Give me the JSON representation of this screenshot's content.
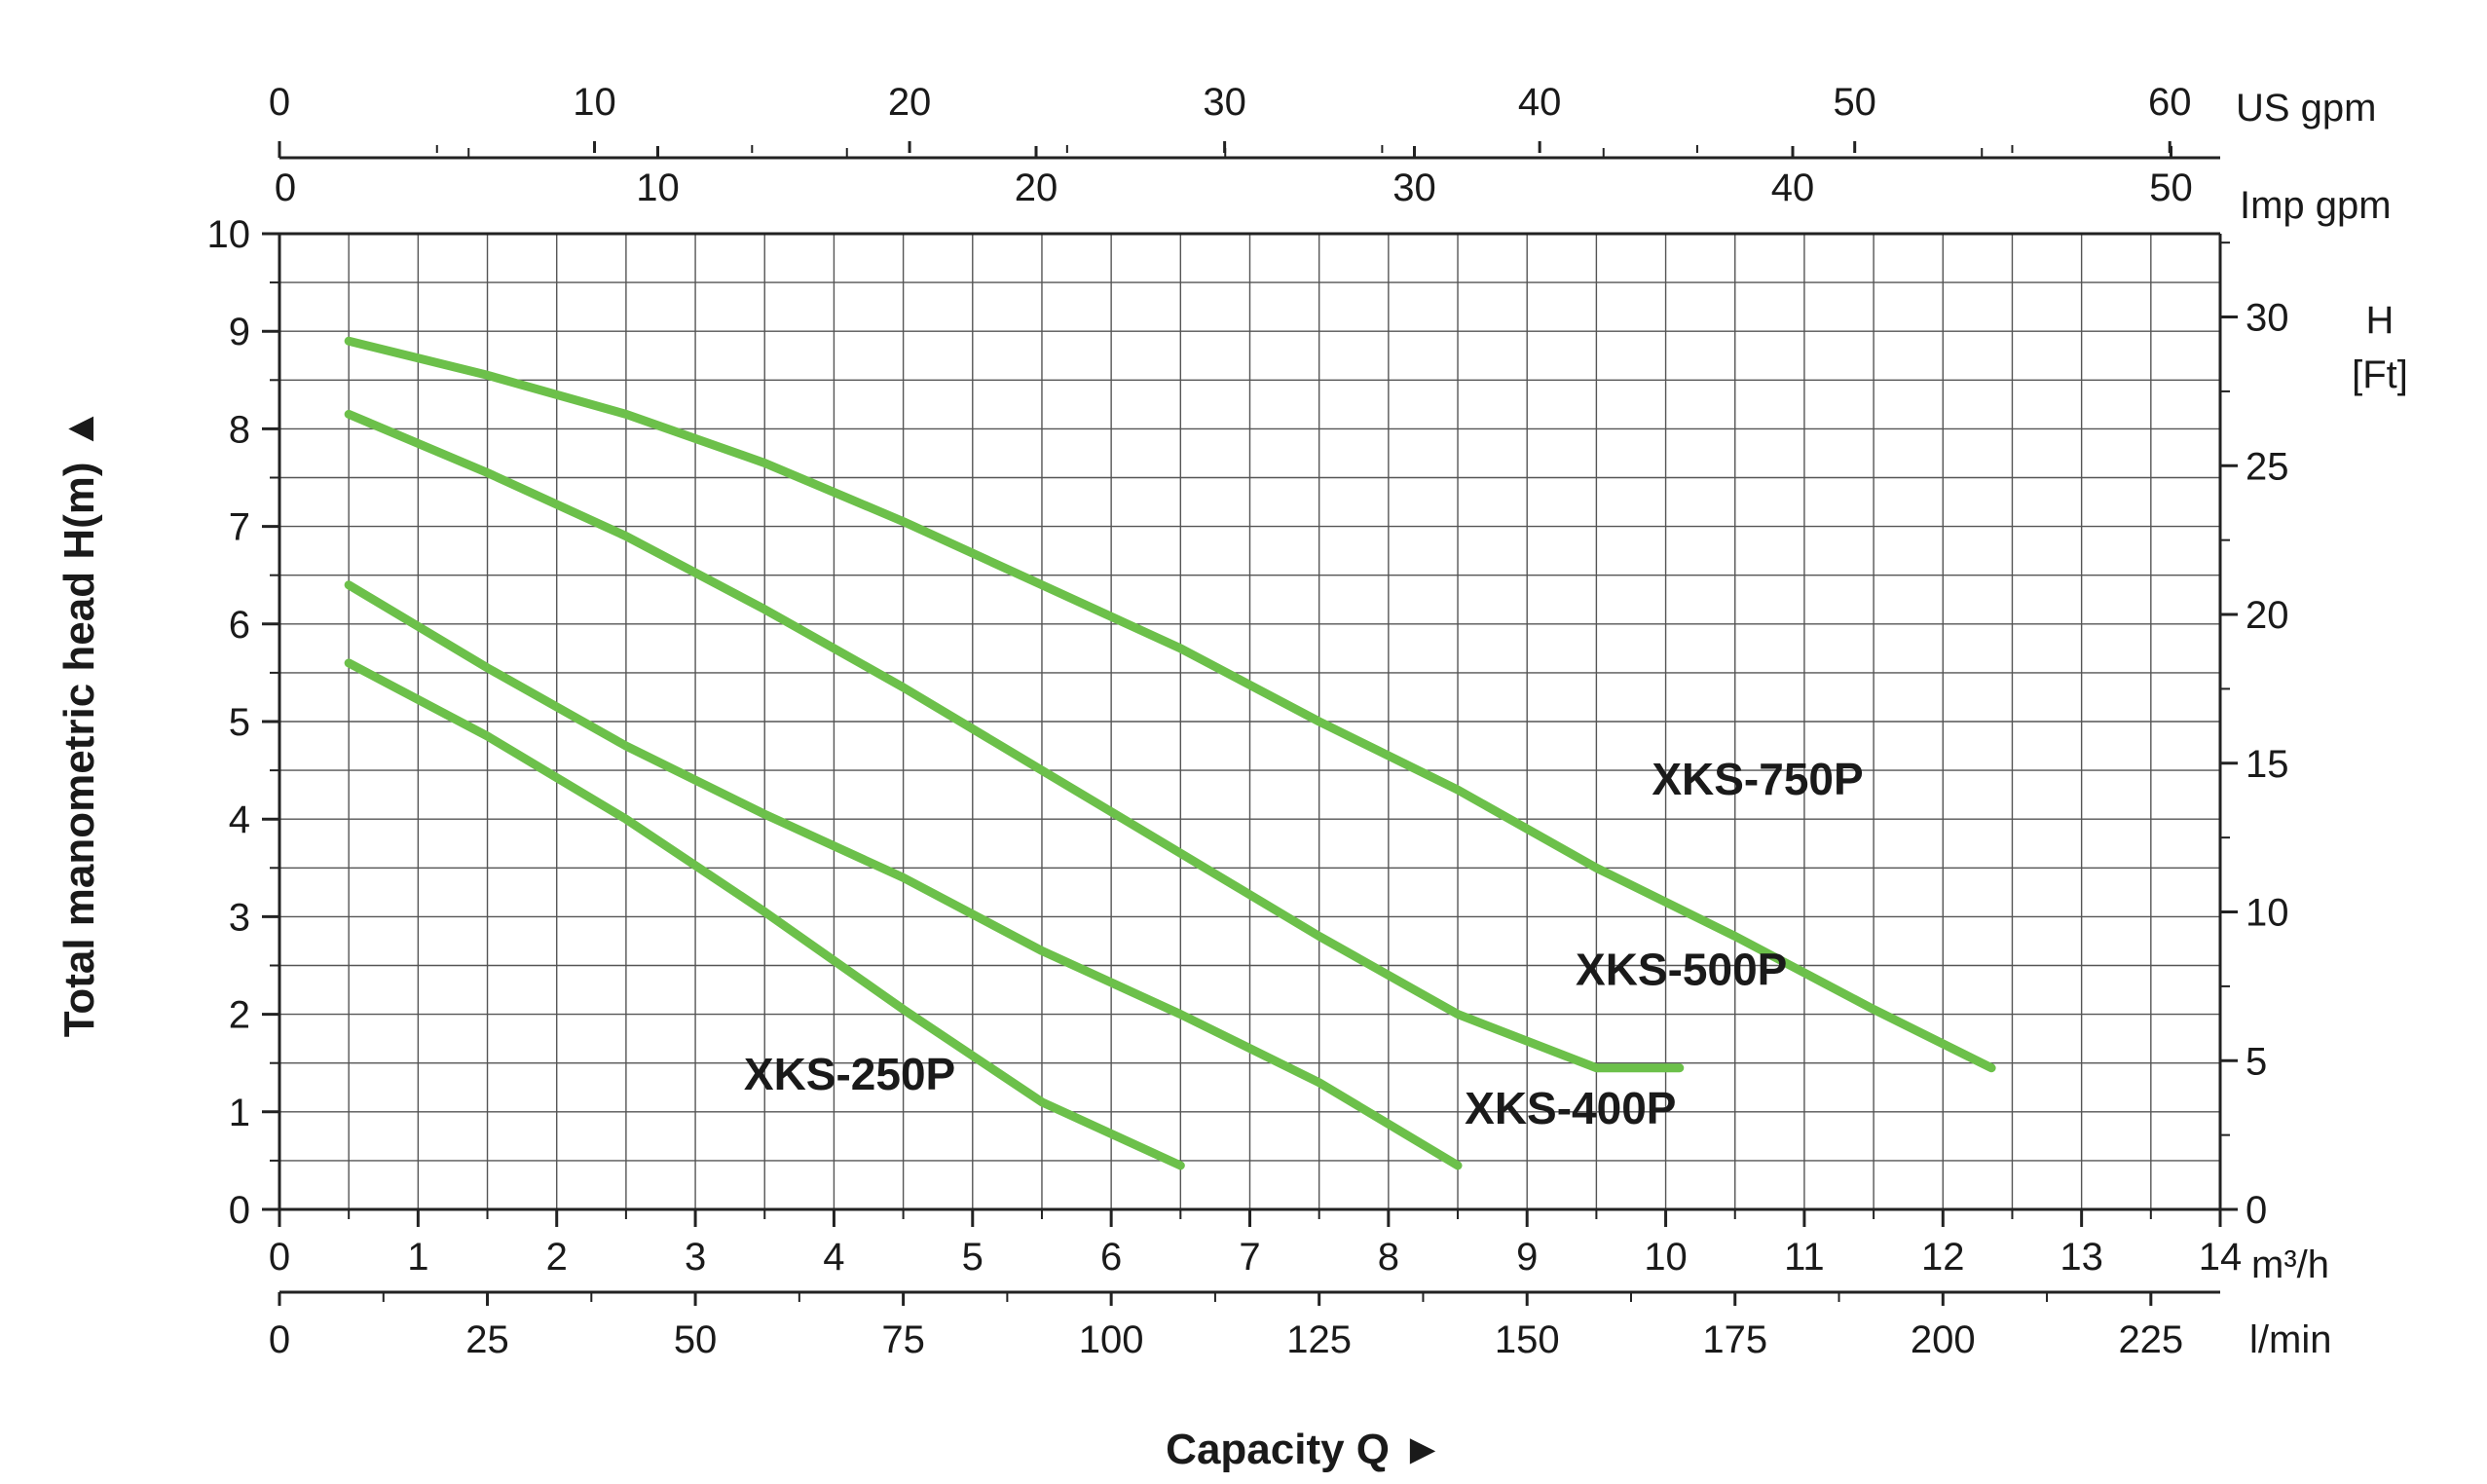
{
  "chart_data": {
    "type": "line",
    "xlabel": "Capacity Q",
    "ylabel": "Total manometric head H(m)",
    "x_arrow": "►",
    "y_arrow": "▲",
    "xlim": [
      0,
      14
    ],
    "ylim": [
      0,
      10
    ],
    "x_ticks": [
      "0",
      "1",
      "2",
      "3",
      "4",
      "5",
      "6",
      "7",
      "8",
      "9",
      "10",
      "11",
      "12",
      "13",
      "14"
    ],
    "y_ticks": [
      "0",
      "1",
      "2",
      "3",
      "4",
      "5",
      "6",
      "7",
      "8",
      "9",
      "10"
    ],
    "x_unit": "m³/h",
    "grid": true,
    "series_color": "#6cc04a",
    "series": [
      {
        "name": "XKS-750P",
        "x": [
          0.5,
          1.5,
          2.5,
          3.5,
          4.5,
          5.5,
          6.5,
          7.5,
          8.5,
          9.5,
          10.5,
          11.5,
          12.35
        ],
        "y": [
          8.9,
          8.55,
          8.15,
          7.65,
          7.05,
          6.4,
          5.75,
          5.0,
          4.3,
          3.5,
          2.8,
          2.05,
          1.45
        ]
      },
      {
        "name": "XKS-500P",
        "x": [
          0.5,
          1.5,
          2.5,
          3.5,
          4.5,
          5.5,
          6.5,
          7.5,
          8.5,
          9.5,
          10.1
        ],
        "y": [
          8.15,
          7.55,
          6.9,
          6.15,
          5.35,
          4.5,
          3.65,
          2.8,
          2.0,
          1.45,
          1.45
        ]
      },
      {
        "name": "XKS-400P",
        "x": [
          0.5,
          1.5,
          2.5,
          3.5,
          4.5,
          5.5,
          6.5,
          7.5,
          8.5
        ],
        "y": [
          6.4,
          5.55,
          4.75,
          4.05,
          3.4,
          2.65,
          2.0,
          1.3,
          0.45
        ]
      },
      {
        "name": "XKS-250P",
        "x": [
          0.5,
          1.5,
          2.5,
          3.5,
          4.5,
          5.5,
          6.5
        ],
        "y": [
          5.6,
          4.85,
          4.0,
          3.05,
          2.05,
          1.1,
          0.45
        ]
      }
    ],
    "curve_labels": [
      {
        "text": "XKS-750P",
        "x": 9.9,
        "y": 4.25
      },
      {
        "text": "XKS-500P",
        "x": 9.35,
        "y": 2.3
      },
      {
        "text": "XKS-400P",
        "x": 8.55,
        "y": 0.88
      },
      {
        "text": "XKS-250P",
        "x": 3.35,
        "y": 1.23
      }
    ],
    "secondary_axes": {
      "lpm": {
        "unit": "l/min",
        "max": 233.333,
        "ticks": [
          "0",
          "25",
          "50",
          "75",
          "100",
          "125",
          "150",
          "175",
          "200",
          "225"
        ]
      },
      "imp_gpm": {
        "unit": "Imp gpm",
        "max": 51.3,
        "ticks": [
          "0",
          "10",
          "20",
          "30",
          "40",
          "50"
        ]
      },
      "us_gpm": {
        "unit": "US  gpm",
        "max": 61.6,
        "ticks": [
          "0",
          "10",
          "20",
          "30",
          "40",
          "50",
          "60"
        ]
      },
      "feet": {
        "unit_line1": "H",
        "unit_line2": "[Ft]",
        "max": 32.8,
        "ticks": [
          "0",
          "5",
          "10",
          "15",
          "20",
          "25",
          "30"
        ]
      }
    }
  }
}
